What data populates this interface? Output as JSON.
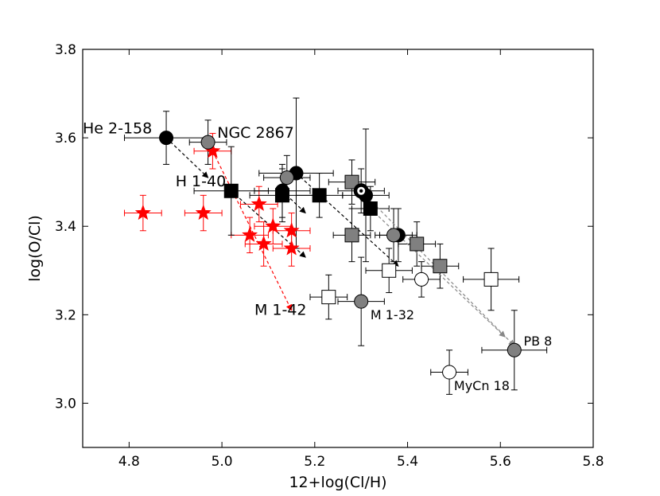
{
  "chart_data": {
    "type": "scatter",
    "title": "",
    "xlabel": "12+log(Cl/H)",
    "ylabel": "log(O/Cl)",
    "xlim": [
      4.7,
      5.8
    ],
    "ylim": [
      2.9,
      3.8
    ],
    "xticks": [
      4.8,
      5.0,
      5.2,
      5.4,
      5.6,
      5.8
    ],
    "yticks": [
      3.0,
      3.2,
      3.4,
      3.6,
      3.8
    ],
    "xtick_labels": [
      "4.8",
      "5.0",
      "5.2",
      "5.4",
      "5.6",
      "5.8"
    ],
    "ytick_labels": [
      "3.0",
      "3.2",
      "3.4",
      "3.6",
      "3.8"
    ],
    "colors": {
      "red": "#ff0000",
      "gray": "#808080",
      "black": "#000000",
      "white": "#ffffff",
      "arrow_gray": "#888888"
    },
    "series": [
      {
        "name": "red-stars",
        "marker": "star",
        "fill": "#ff0000",
        "points": [
          {
            "x": 4.83,
            "y": 3.43,
            "xerr": 0.04,
            "yerr": 0.04
          },
          {
            "x": 4.96,
            "y": 3.43,
            "xerr": 0.04,
            "yerr": 0.04
          },
          {
            "x": 4.98,
            "y": 3.57,
            "xerr": 0.04,
            "yerr": 0.04
          },
          {
            "x": 5.06,
            "y": 3.38,
            "xerr": 0.04,
            "yerr": 0.04
          },
          {
            "x": 5.08,
            "y": 3.45,
            "xerr": 0.04,
            "yerr": 0.04
          },
          {
            "x": 5.09,
            "y": 3.36,
            "xerr": 0.04,
            "yerr": 0.05
          },
          {
            "x": 5.11,
            "y": 3.4,
            "xerr": 0.04,
            "yerr": 0.04
          },
          {
            "x": 5.15,
            "y": 3.39,
            "xerr": 0.04,
            "yerr": 0.04
          },
          {
            "x": 5.15,
            "y": 3.35,
            "xerr": 0.04,
            "yerr": 0.04
          }
        ]
      },
      {
        "name": "black-circles",
        "marker": "circle",
        "fill": "#000000",
        "points": [
          {
            "x": 4.88,
            "y": 3.6,
            "xerr": 0.09,
            "yerr": 0.06
          },
          {
            "x": 5.13,
            "y": 3.48,
            "xerr": 0.06,
            "yerr": 0.06
          },
          {
            "x": 5.16,
            "y": 3.52,
            "xerr": 0.08,
            "yerr": 0.17
          },
          {
            "x": 5.31,
            "y": 3.47,
            "xerr": 0.05,
            "yerr": 0.15
          },
          {
            "x": 5.38,
            "y": 3.38,
            "xerr": 0.04,
            "yerr": 0.06
          }
        ]
      },
      {
        "name": "gray-circles",
        "marker": "circle",
        "fill": "#808080",
        "points": [
          {
            "x": 4.97,
            "y": 3.59,
            "xerr": 0.04,
            "yerr": 0.05
          },
          {
            "x": 5.14,
            "y": 3.51,
            "xerr": 0.05,
            "yerr": 0.05
          },
          {
            "x": 5.3,
            "y": 3.23,
            "xerr": 0.05,
            "yerr": 0.1
          },
          {
            "x": 5.37,
            "y": 3.38,
            "xerr": 0.04,
            "yerr": 0.06
          },
          {
            "x": 5.63,
            "y": 3.12,
            "xerr": 0.07,
            "yerr": 0.09
          }
        ]
      },
      {
        "name": "black-squares",
        "marker": "square",
        "fill": "#000000",
        "points": [
          {
            "x": 5.02,
            "y": 3.48,
            "xerr": 0.08,
            "yerr": 0.1
          },
          {
            "x": 5.13,
            "y": 3.47,
            "xerr": 0.07,
            "yerr": 0.06
          },
          {
            "x": 5.21,
            "y": 3.47,
            "xerr": 0.05,
            "yerr": 0.05
          },
          {
            "x": 5.32,
            "y": 3.44,
            "xerr": 0.04,
            "yerr": 0.05
          }
        ]
      },
      {
        "name": "gray-squares",
        "marker": "square",
        "fill": "#808080",
        "points": [
          {
            "x": 5.28,
            "y": 3.5,
            "xerr": 0.05,
            "yerr": 0.05
          },
          {
            "x": 5.28,
            "y": 3.38,
            "xerr": 0.04,
            "yerr": 0.06
          },
          {
            "x": 5.42,
            "y": 3.36,
            "xerr": 0.04,
            "yerr": 0.05
          },
          {
            "x": 5.47,
            "y": 3.31,
            "xerr": 0.04,
            "yerr": 0.05
          }
        ]
      },
      {
        "name": "open-squares",
        "marker": "square",
        "fill": "#ffffff",
        "points": [
          {
            "x": 5.23,
            "y": 3.24,
            "xerr": 0.04,
            "yerr": 0.05
          },
          {
            "x": 5.36,
            "y": 3.3,
            "xerr": 0.05,
            "yerr": 0.05
          },
          {
            "x": 5.58,
            "y": 3.28,
            "xerr": 0.06,
            "yerr": 0.07
          }
        ]
      },
      {
        "name": "open-circles",
        "marker": "circle",
        "fill": "#ffffff",
        "points": [
          {
            "x": 5.43,
            "y": 3.28,
            "xerr": 0.04,
            "yerr": 0.04
          },
          {
            "x": 5.49,
            "y": 3.07,
            "xerr": 0.04,
            "yerr": 0.05
          }
        ]
      },
      {
        "name": "ringed-circle",
        "marker": "target",
        "fill": "#000000",
        "points": [
          {
            "x": 5.3,
            "y": 3.48,
            "xerr": 0.05,
            "yerr": 0.05
          }
        ]
      }
    ],
    "arrows": [
      {
        "from": [
          4.98,
          3.57
        ],
        "to": [
          5.15,
          3.21
        ],
        "color": "#ff0000",
        "style": "dashed"
      },
      {
        "from": [
          4.88,
          3.6
        ],
        "to": [
          4.97,
          3.51
        ],
        "color": "#000000",
        "style": "dashed"
      },
      {
        "from": [
          5.02,
          3.48
        ],
        "to": [
          5.18,
          3.33
        ],
        "color": "#000000",
        "style": "dashed"
      },
      {
        "from": [
          5.13,
          3.48
        ],
        "to": [
          5.18,
          3.43
        ],
        "color": "#000000",
        "style": "dashed"
      },
      {
        "from": [
          5.16,
          3.52
        ],
        "to": [
          5.38,
          3.31
        ],
        "color": "#000000",
        "style": "dashed"
      },
      {
        "from": [
          5.3,
          3.48
        ],
        "to": [
          5.63,
          3.13
        ],
        "color": "#888888",
        "style": "dashed"
      },
      {
        "from": [
          5.32,
          3.44
        ],
        "to": [
          5.61,
          3.15
        ],
        "color": "#888888",
        "style": "dashed"
      }
    ],
    "annotations": [
      {
        "text": "He 2-158",
        "x": 4.7,
        "y": 3.61,
        "size": "large"
      },
      {
        "text": "NGC 2867",
        "x": 4.99,
        "y": 3.6,
        "size": "large"
      },
      {
        "text": "H 1-40",
        "x": 4.9,
        "y": 3.49,
        "size": "large"
      },
      {
        "text": "M 1-42",
        "x": 5.07,
        "y": 3.2,
        "size": "large"
      },
      {
        "text": "M 1-32",
        "x": 5.32,
        "y": 3.19,
        "size": "small"
      },
      {
        "text": "PB 8",
        "x": 5.65,
        "y": 3.13,
        "size": "small"
      },
      {
        "text": "MyCn 18",
        "x": 5.5,
        "y": 3.03,
        "size": "small"
      }
    ]
  }
}
